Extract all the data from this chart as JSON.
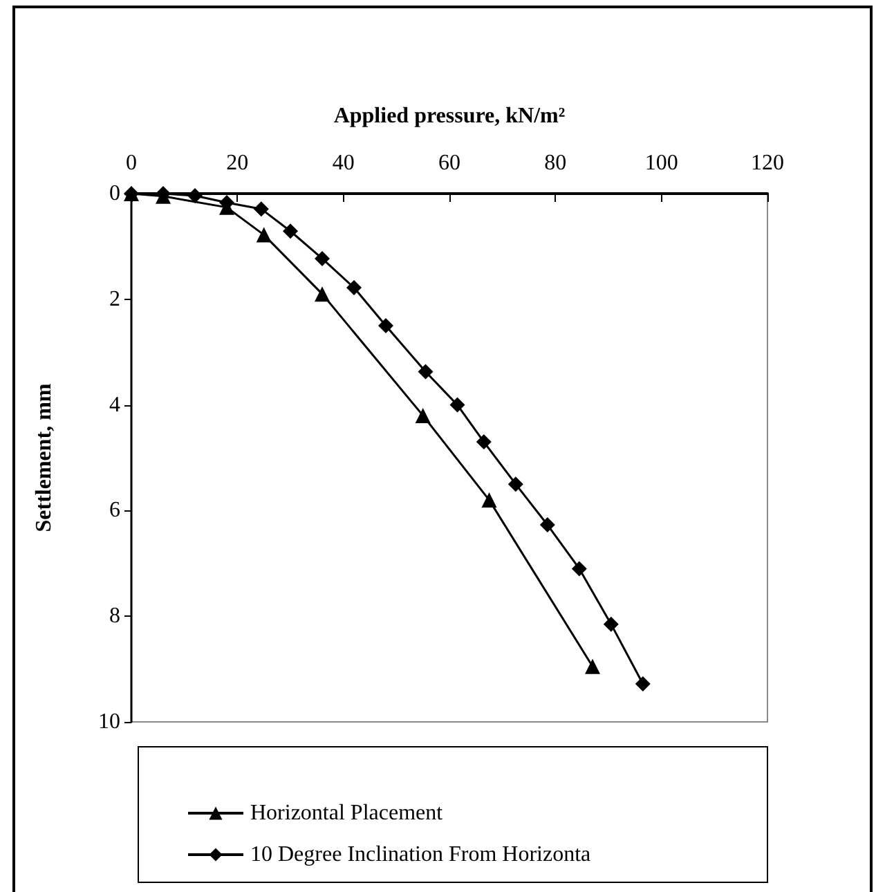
{
  "chart_data": {
    "type": "line",
    "xlabel": "Applied pressure, kN/m²",
    "ylabel": "Settlement, mm",
    "xlim": [
      0,
      120
    ],
    "xticks": [
      0,
      20,
      40,
      60,
      80,
      100,
      120
    ],
    "ylim": [
      10,
      0
    ],
    "yticks": [
      0,
      2,
      4,
      6,
      8,
      10
    ],
    "grid": false,
    "legend": "bottom",
    "line_style": "solid",
    "series": [
      {
        "name": "Horizontal Placement",
        "color": "#000000",
        "marker": "triangle",
        "x": [
          0,
          6,
          18,
          25,
          36,
          55,
          67.5,
          87
        ],
        "values": [
          0,
          0.05,
          0.26,
          0.78,
          1.9,
          4.2,
          5.8,
          8.95
        ]
      },
      {
        "name": "10 Degree Inclination From Horizonta",
        "color": "#000000",
        "marker": "diamond",
        "x": [
          0,
          6,
          12,
          18,
          24.5,
          30,
          36,
          42,
          48,
          55.5,
          61.5,
          66.5,
          72.5,
          78.5,
          84.5,
          90.5,
          96.5
        ],
        "values": [
          0,
          0,
          0.04,
          0.17,
          0.29,
          0.71,
          1.23,
          1.78,
          2.5,
          3.37,
          4.0,
          4.7,
          5.5,
          6.27,
          7.1,
          8.15,
          9.28
        ]
      }
    ]
  }
}
